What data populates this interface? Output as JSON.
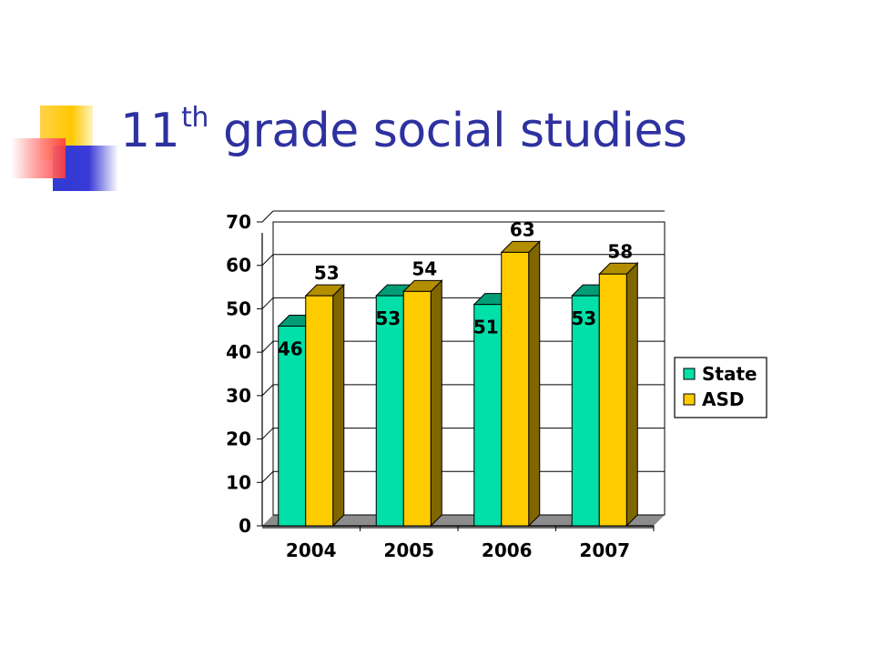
{
  "slide": {
    "title_main": "11",
    "title_sup": "th",
    "title_rest": " grade social studies"
  },
  "colors": {
    "title": "#2e31a0",
    "state": "#00e0a8",
    "asd": "#ffcc00",
    "deco_yellow": "#ffc800",
    "deco_blue": "#3a3ad8",
    "deco_red": "#ff3b3b"
  },
  "chart_data": {
    "type": "bar",
    "title": "",
    "xlabel": "",
    "ylabel": "",
    "categories": [
      "2004",
      "2005",
      "2006",
      "2007"
    ],
    "series": [
      {
        "name": "State",
        "values": [
          46,
          53,
          51,
          53
        ]
      },
      {
        "name": "ASD",
        "values": [
          53,
          54,
          63,
          58
        ]
      }
    ],
    "ylim": [
      0,
      70
    ],
    "yticks": [
      0,
      10,
      20,
      30,
      40,
      50,
      60,
      70
    ],
    "grid": true,
    "legend": "right",
    "data_labels": true,
    "style": "3d"
  }
}
